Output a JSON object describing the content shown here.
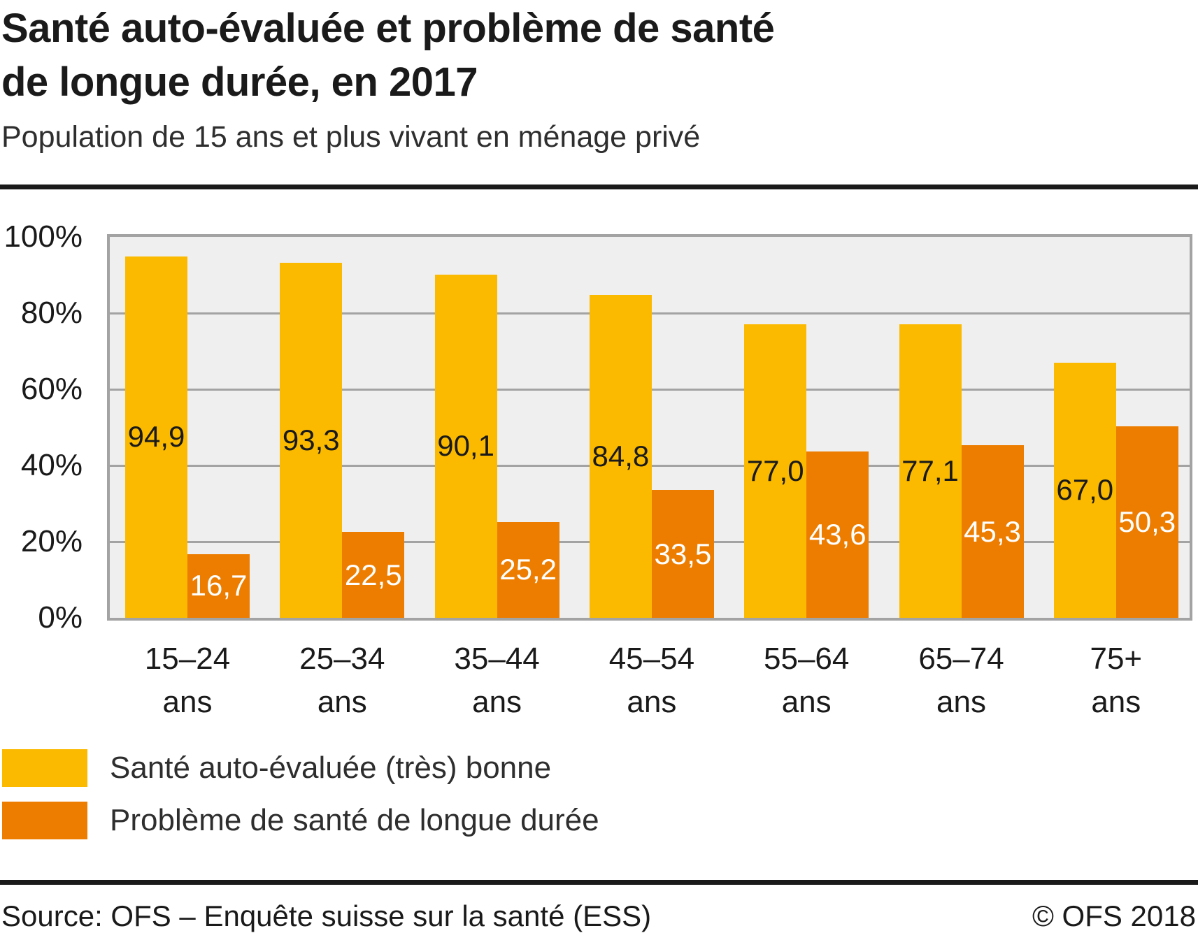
{
  "header": {
    "title": "Santé auto-évaluée et problème de santé\nde longue durée, en 2017",
    "subtitle": "Population de 15 ans et plus vivant en ménage privé"
  },
  "chart_data": {
    "type": "bar",
    "title": "Santé auto-évaluée et problème de santé de longue durée, en 2017",
    "subtitle": "Population de 15 ans et plus vivant en ménage privé",
    "categories": [
      "15–24",
      "25–34",
      "35–44",
      "45–54",
      "55–64",
      "65–74",
      "75+"
    ],
    "category_unit": "ans",
    "series": [
      {
        "name": "Santé auto-évaluée (très) bonne",
        "color": "#FBBA00",
        "label_color": "#1A1A1A",
        "values": [
          94.9,
          93.3,
          90.1,
          84.8,
          77.0,
          77.1,
          67.0
        ],
        "labels": [
          "94,9",
          "93,3",
          "90,1",
          "84,8",
          "77,0",
          "77,1",
          "67,0"
        ]
      },
      {
        "name": "Problème de santé de longue durée",
        "color": "#ED7D00",
        "label_color": "#FFFFFF",
        "values": [
          16.7,
          22.5,
          25.2,
          33.5,
          43.6,
          45.3,
          50.3
        ],
        "labels": [
          "16,7",
          "22,5",
          "25,2",
          "33,5",
          "43,6",
          "45,3",
          "50,3"
        ]
      }
    ],
    "xlabel": "",
    "ylabel": "",
    "ylim": [
      0,
      100
    ],
    "yticks": [
      {
        "value": 0,
        "label": "0%"
      },
      {
        "value": 20,
        "label": "20%"
      },
      {
        "value": 40,
        "label": "40%"
      },
      {
        "value": 60,
        "label": "60%"
      },
      {
        "value": 80,
        "label": "80%"
      },
      {
        "value": 100,
        "label": "100%"
      }
    ],
    "grid": true,
    "grid_color": "#A3A3A3",
    "plot_background": "#EFEFEF",
    "legend_position": "bottom-left"
  },
  "footer": {
    "source": "Source: OFS – Enquête suisse sur la santé (ESS)",
    "copyright": "© OFS 2018"
  }
}
